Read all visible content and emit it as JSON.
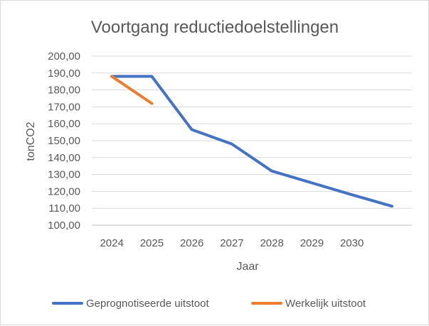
{
  "chart_data": {
    "type": "line",
    "title": "Voortgang reductiedoelstellingen",
    "xlabel": "Jaar",
    "ylabel": "tonCO2",
    "categories": [
      "2024",
      "2025",
      "2026",
      "2027",
      "2028",
      "2029",
      "2030",
      ""
    ],
    "ylim": [
      100,
      200
    ],
    "ytick_step": 10,
    "ytick_labels": [
      "100,00",
      "110,00",
      "120,00",
      "130,00",
      "140,00",
      "150,00",
      "160,00",
      "170,00",
      "180,00",
      "190,00",
      "200,00"
    ],
    "grid": true,
    "legend": "bottom",
    "series": [
      {
        "name": "Geprognotiseerde uitstoot",
        "color": "#4472c4",
        "values": [
          188,
          188,
          156.5,
          148,
          132,
          125,
          118,
          111.2
        ]
      },
      {
        "name": "Werkelijk uitstoot",
        "color": "#ed7d31",
        "values": [
          188,
          172,
          null,
          null,
          null,
          null,
          null,
          null
        ]
      }
    ]
  }
}
